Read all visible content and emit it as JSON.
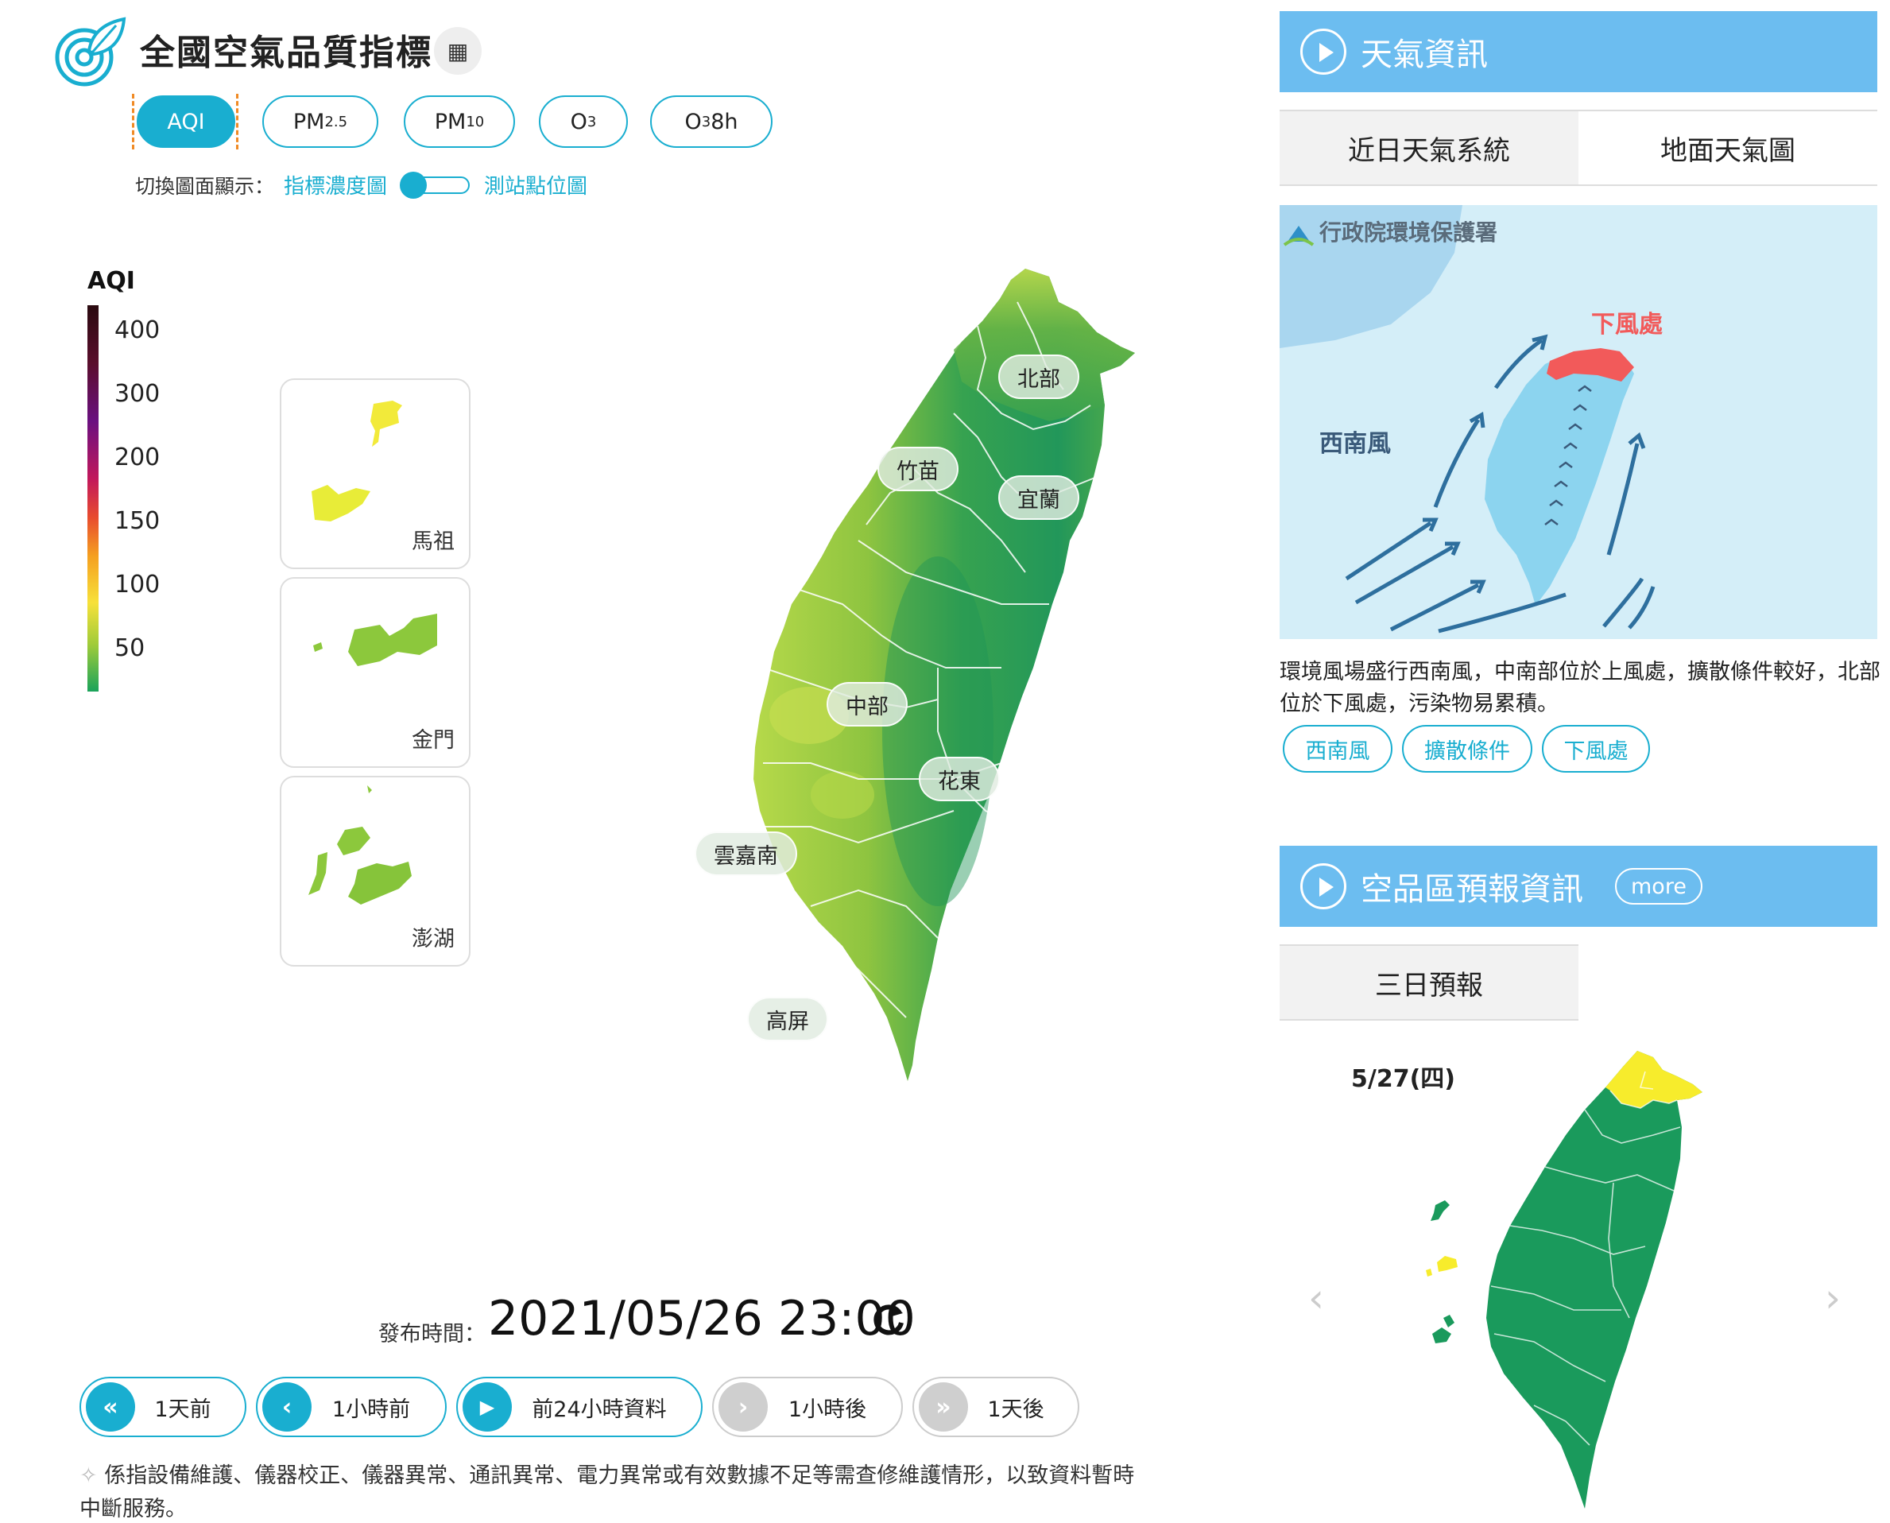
{
  "header": {
    "title": "全國空氣品質指標",
    "logo_icon": "leaf-target-icon",
    "calc_icon": "calculator-icon"
  },
  "tabs": [
    {
      "label": "AQI",
      "active": true
    },
    {
      "label": "PM",
      "sub": "2.5",
      "suffix": ""
    },
    {
      "label": "PM",
      "sub": "10",
      "suffix": ""
    },
    {
      "label": "O",
      "sub": "3",
      "suffix": ""
    },
    {
      "label": "O",
      "sub": "3",
      "suffix": " 8h"
    }
  ],
  "switch": {
    "prefix": "切換圖面顯示：",
    "option_left": "指標濃度圖",
    "option_right": "測站點位圖"
  },
  "legend": {
    "title": "AQI",
    "labels": [
      "400",
      "300",
      "200",
      "150",
      "100",
      "50"
    ]
  },
  "insets": [
    {
      "name": "馬祖"
    },
    {
      "name": "金門"
    },
    {
      "name": "澎湖"
    }
  ],
  "regions": [
    "北部",
    "竹苗",
    "宜蘭",
    "中部",
    "花東",
    "雲嘉南",
    "高屏"
  ],
  "publish": {
    "label": "發布時間：",
    "time": "2021/05/26 23:00"
  },
  "nav": [
    {
      "label": "1天前",
      "icon": "«",
      "disabled": false
    },
    {
      "label": "1小時前",
      "icon": "‹",
      "disabled": false
    },
    {
      "label": "前24小時資料",
      "icon": "▶",
      "disabled": false
    },
    {
      "label": "1小時後",
      "icon": "›",
      "disabled": true
    },
    {
      "label": "1天後",
      "icon": "»",
      "disabled": true
    }
  ],
  "footnote": {
    "mark": "✧",
    "text": "係指設備維護、儀器校正、儀器異常、通訊異常、電力異常或有效數據不足等需查修維護情形，以致資料暫時中斷服務。"
  },
  "weather": {
    "title": "天氣資訊",
    "tabs": [
      "近日天氣系統",
      "地面天氣圖"
    ],
    "image_logo_text": "行政院環境保護署",
    "image_label_wind": "西南風",
    "image_label_downwind": "下風處",
    "description": "環境風場盛行西南風，中南部位於上風處，擴散條件較好，北部位於下風處，污染物易累積。",
    "tags": [
      "西南風",
      "擴散條件",
      "下風處"
    ]
  },
  "forecast": {
    "title": "空品區預報資訊",
    "more": "more",
    "tab": "三日預報",
    "date": "5/27(四)"
  },
  "colors": {
    "accent": "#19aed0",
    "header_blue": "#6cbdf0",
    "good": "#1a9a5c",
    "moderate": "#f7ec2c"
  }
}
